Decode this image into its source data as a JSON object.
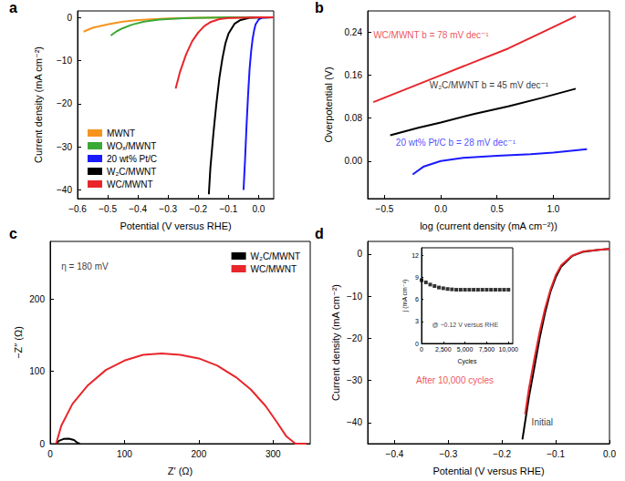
{
  "chart_data": [
    {
      "type": "line",
      "panel": "a",
      "x_label": "Potential (V versus RHE)",
      "y_label": "Current density (mA cm⁻²)",
      "xlim": [
        -0.6,
        0.05
      ],
      "xticks": [
        {
          "value": -0.6,
          "label": "−0.6"
        },
        {
          "value": -0.5,
          "label": "−0.5"
        },
        {
          "value": -0.4,
          "label": "−0.4"
        },
        {
          "value": -0.3,
          "label": "−0.3"
        },
        {
          "value": -0.2,
          "label": "−0.2"
        },
        {
          "value": -0.1,
          "label": "−0.1"
        },
        {
          "value": 0,
          "label": "0.0"
        }
      ],
      "ylim": [
        -42,
        1.5
      ],
      "yticks": [
        {
          "value": -40,
          "label": "−40"
        },
        {
          "value": -30,
          "label": "−30"
        },
        {
          "value": -20,
          "label": "−20"
        },
        {
          "value": -10,
          "label": "−10"
        },
        0
      ],
      "grid": false,
      "legend": "lower left",
      "series": [
        {
          "name": "MWNT",
          "color": "#f7941d",
          "x": [
            -0.58,
            -0.55,
            -0.5,
            -0.45,
            -0.4,
            -0.3,
            -0.2,
            0,
            0.05
          ],
          "values": [
            -3.3,
            -2.4,
            -1.6,
            -1.0,
            -0.6,
            -0.25,
            -0.1,
            0,
            0
          ]
        },
        {
          "name": "WOₓ/MWNT",
          "color": "#3aa935",
          "x": [
            -0.49,
            -0.47,
            -0.45,
            -0.42,
            -0.38,
            -0.33,
            -0.25,
            -0.1,
            0.05
          ],
          "values": [
            -4.2,
            -3.2,
            -2.5,
            -1.7,
            -1.0,
            -0.5,
            -0.2,
            0,
            0
          ]
        },
        {
          "name": "20 wt% Pt/C",
          "color": "#1a1aff",
          "x": [
            -0.05,
            -0.045,
            -0.04,
            -0.035,
            -0.03,
            -0.025,
            -0.02,
            -0.015,
            -0.01,
            0,
            0.01,
            0.05
          ],
          "values": [
            -40,
            -33,
            -25,
            -18,
            -12,
            -8,
            -5,
            -3,
            -1.6,
            -0.5,
            -0.1,
            0
          ]
        },
        {
          "name": "W₂C/MWNT",
          "color": "#000000",
          "x": [
            -0.165,
            -0.16,
            -0.15,
            -0.14,
            -0.13,
            -0.12,
            -0.11,
            -0.1,
            -0.08,
            -0.06,
            -0.03,
            0.05
          ],
          "values": [
            -41,
            -35,
            -27,
            -20,
            -14,
            -9.5,
            -6,
            -3.8,
            -1.5,
            -0.6,
            -0.1,
            0
          ]
        },
        {
          "name": "WC/MWNT",
          "color": "#e8262b",
          "x": [
            -0.275,
            -0.26,
            -0.24,
            -0.22,
            -0.2,
            -0.18,
            -0.16,
            -0.13,
            -0.1,
            0,
            0.05
          ],
          "values": [
            -16.5,
            -12.5,
            -8.5,
            -5.5,
            -3.5,
            -2.0,
            -1.1,
            -0.4,
            -0.15,
            0,
            0
          ]
        }
      ]
    },
    {
      "type": "line",
      "panel": "b",
      "x_label": "log (current density (mA cm⁻²))",
      "y_label": "Overpotential (V)",
      "xlim": [
        -0.65,
        1.5
      ],
      "xticks": [
        {
          "value": -0.5,
          "label": "−0.5"
        },
        {
          "value": 0,
          "label": "0.0"
        },
        {
          "value": 0.5,
          "label": "0.5"
        },
        {
          "value": 1,
          "label": "1.0"
        }
      ],
      "ylim": [
        -0.07,
        0.28
      ],
      "yticks": [
        {
          "value": 0,
          "label": "0.00"
        },
        {
          "value": 0.08,
          "label": "0.08"
        },
        {
          "value": 0.16,
          "label": "0.16"
        },
        {
          "value": 0.24,
          "label": "0.24"
        }
      ],
      "grid": false,
      "series": [
        {
          "name": "WC/MWNT",
          "color": "#e8262b",
          "x": [
            -0.6,
            -0.3,
            0,
            0.3,
            0.6,
            0.9,
            1.2
          ],
          "values": [
            0.11,
            0.135,
            0.16,
            0.185,
            0.21,
            0.24,
            0.27
          ]
        },
        {
          "name": "W₂C/MWNT",
          "color": "#000000",
          "x": [
            -0.45,
            -0.2,
            0,
            0.3,
            0.6,
            0.9,
            1.2
          ],
          "values": [
            0.048,
            0.062,
            0.072,
            0.088,
            0.102,
            0.118,
            0.135
          ]
        },
        {
          "name": "20 wt% Pt/C",
          "color": "#1a1aff",
          "x": [
            -0.25,
            -0.15,
            0,
            0.2,
            0.5,
            0.8,
            1.0,
            1.3
          ],
          "values": [
            -0.025,
            -0.01,
            0,
            0.006,
            0.01,
            0.013,
            0.016,
            0.022
          ]
        }
      ],
      "annotations": [
        {
          "text": "WC/MWNT b = 78 mV dec⁻¹",
          "x": -0.6,
          "y": 0.235,
          "color": "#e8262b"
        },
        {
          "text": "W₂C/MWNT b = 45 mV dec⁻¹",
          "x": -0.1,
          "y": 0.142,
          "color": "#000000"
        },
        {
          "text": "20 wt% Pt/C b = 28 mV dec⁻¹",
          "x": -0.4,
          "y": 0.035,
          "color": "#1a1aff"
        }
      ]
    },
    {
      "type": "line",
      "panel": "c",
      "x_label": "Z′ (Ω)",
      "y_label": "−Z″ (Ω)",
      "xlim": [
        0,
        350
      ],
      "xticks": [
        0,
        100,
        200,
        300
      ],
      "ylim": [
        0,
        280
      ],
      "yticks": [
        0,
        100,
        200
      ],
      "grid": false,
      "legend": "upper right",
      "series": [
        {
          "name": "W₂C/MWNT",
          "color": "#000000",
          "x": [
            8,
            12,
            18,
            25,
            32,
            37,
            40
          ],
          "values": [
            0,
            4,
            6.5,
            7,
            5,
            1,
            0
          ]
        },
        {
          "name": "WC/MWNT",
          "color": "#e8262b",
          "x": [
            8,
            15,
            30,
            50,
            75,
            100,
            125,
            150,
            175,
            200,
            225,
            250,
            270,
            290,
            305,
            318,
            330,
            345
          ],
          "values": [
            0,
            25,
            55,
            80,
            102,
            115,
            123,
            125,
            123,
            118,
            108,
            92,
            75,
            52,
            30,
            10,
            0,
            0
          ]
        }
      ],
      "annotations": [
        {
          "text": "η = 180 mV",
          "x": 15,
          "y": 245,
          "color": "#000000"
        }
      ]
    },
    {
      "type": "line",
      "panel": "d",
      "x_label": "Potential (V versus RHE)",
      "y_label": "Current density (mA cm⁻²)",
      "xlim": [
        -0.45,
        0
      ],
      "xticks": [
        {
          "value": -0.4,
          "label": "−0.4"
        },
        {
          "value": -0.3,
          "label": "−0.3"
        },
        {
          "value": -0.2,
          "label": "−0.2"
        },
        {
          "value": -0.1,
          "label": "−0.1"
        },
        {
          "value": 0,
          "label": "0.0"
        }
      ],
      "ylim": [
        -45,
        3
      ],
      "yticks": [
        {
          "value": -40,
          "label": "−40"
        },
        {
          "value": -30,
          "label": "−30"
        },
        {
          "value": -20,
          "label": "−20"
        },
        {
          "value": -10,
          "label": "−10"
        },
        0
      ],
      "grid": false,
      "series": [
        {
          "name": "Initial",
          "color": "#000000",
          "x": [
            -0.162,
            -0.15,
            -0.14,
            -0.13,
            -0.12,
            -0.11,
            -0.1,
            -0.09,
            -0.07,
            -0.05,
            -0.02,
            0
          ],
          "values": [
            -44,
            -34,
            -27,
            -20,
            -14,
            -9,
            -5.5,
            -3,
            -0.5,
            0.5,
            1.0,
            1.2
          ]
        },
        {
          "name": "After 10,000 cycles",
          "color": "#e8262b",
          "x": [
            -0.157,
            -0.15,
            -0.14,
            -0.13,
            -0.12,
            -0.11,
            -0.1,
            -0.09,
            -0.07,
            -0.05,
            -0.02,
            0
          ],
          "values": [
            -38,
            -32,
            -25,
            -18.5,
            -13,
            -8.5,
            -5,
            -2.7,
            -0.4,
            0.6,
            1.0,
            1.2
          ]
        }
      ],
      "annotations": [
        {
          "text": "After 10,000 cycles",
          "x": -0.36,
          "y": -30,
          "color": "#e8262b"
        },
        {
          "text": "Initial",
          "x": -0.145,
          "y": -40,
          "color": "#000000"
        }
      ]
    },
    {
      "type": "scatter",
      "marker": "square",
      "x_label": "Cycles",
      "y_label": "j (mA cm⁻²)",
      "xlim": [
        0,
        10500
      ],
      "xticks": [
        0,
        {
          "value": 2500,
          "label": "2,500"
        },
        {
          "value": 5000,
          "label": "5,000"
        },
        {
          "value": 7500,
          "label": "7,500"
        },
        {
          "value": 10000,
          "label": "10,000"
        }
      ],
      "ylim": [
        0,
        13
      ],
      "yticks": [
        0,
        3,
        6,
        9,
        12
      ],
      "grid": false,
      "series": [
        {
          "name": "j",
          "color": "#000000",
          "x": [
            0,
            500,
            1000,
            1500,
            2000,
            2500,
            3000,
            3500,
            4000,
            4500,
            5000,
            5500,
            6000,
            6500,
            7000,
            7500,
            8000,
            8500,
            9000,
            9500,
            10000
          ],
          "values": [
            8.6,
            8.3,
            8.0,
            7.8,
            7.6,
            7.5,
            7.4,
            7.35,
            7.3,
            7.3,
            7.3,
            7.3,
            7.3,
            7.3,
            7.3,
            7.3,
            7.3,
            7.3,
            7.3,
            7.3,
            7.3
          ]
        }
      ],
      "annotations": [
        {
          "text": "@ −0.12 V versus RHE",
          "x": 1200,
          "y": 2.5,
          "color": "#000000"
        }
      ]
    }
  ]
}
